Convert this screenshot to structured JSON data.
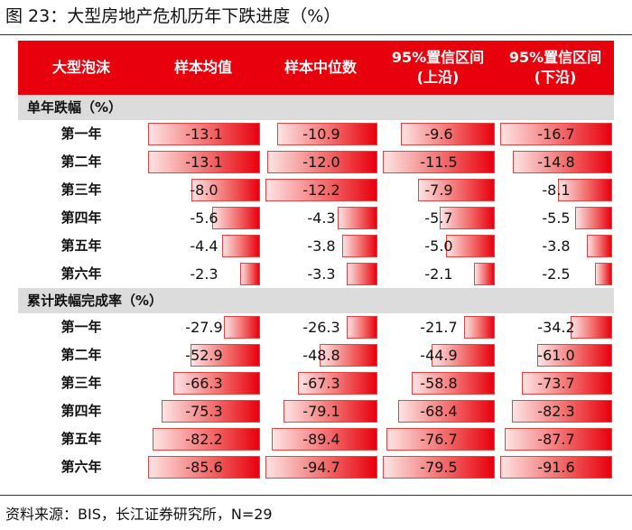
{
  "figure_title": "图 23：大型房地产危机历年下跌进度（%）",
  "source": "资料来源：BIS，长江证券研究所，N=29",
  "colors": {
    "header_bg": "#e8000d",
    "section_bg": "#dcdcdc",
    "bar": "#e8000d"
  },
  "header": {
    "col0": "大型泡沫",
    "col1": "样本均值",
    "col2": "样本中位数",
    "col3_line1": "95%置信区间",
    "col3_line2": "(上沿)",
    "col4_line1": "95%置信区间",
    "col4_line2": "(下沿)"
  },
  "sections": [
    {
      "title": "单年跌幅（%）",
      "rows": [
        {
          "label": "第一年",
          "values": [
            "-13.1",
            "-10.9",
            "-9.6",
            "-16.7"
          ]
        },
        {
          "label": "第二年",
          "values": [
            "-13.1",
            "-12.0",
            "-11.5",
            "-14.8"
          ]
        },
        {
          "label": "第三年",
          "values": [
            "-8.0",
            "-12.2",
            "-7.9",
            "-8.1"
          ]
        },
        {
          "label": "第四年",
          "values": [
            "-5.6",
            "-4.3",
            "-5.7",
            "-5.5"
          ]
        },
        {
          "label": "第五年",
          "values": [
            "-4.4",
            "-3.8",
            "-5.0",
            "-3.8"
          ]
        },
        {
          "label": "第六年",
          "values": [
            "-2.3",
            "-3.3",
            "-2.1",
            "-2.5"
          ]
        }
      ]
    },
    {
      "title": "累计跌幅完成率（%）",
      "rows": [
        {
          "label": "第一年",
          "values": [
            "-27.9",
            "-26.3",
            "-21.7",
            "-34.2"
          ]
        },
        {
          "label": "第二年",
          "values": [
            "-52.9",
            "-48.8",
            "-44.9",
            "-61.0"
          ]
        },
        {
          "label": "第三年",
          "values": [
            "-66.3",
            "-67.3",
            "-58.8",
            "-73.7"
          ]
        },
        {
          "label": "第四年",
          "values": [
            "-75.3",
            "-79.1",
            "-68.4",
            "-82.3"
          ]
        },
        {
          "label": "第五年",
          "values": [
            "-82.2",
            "-89.4",
            "-76.7",
            "-87.7"
          ]
        },
        {
          "label": "第六年",
          "values": [
            "-85.6",
            "-94.7",
            "-79.5",
            "-91.6"
          ]
        }
      ]
    }
  ]
}
